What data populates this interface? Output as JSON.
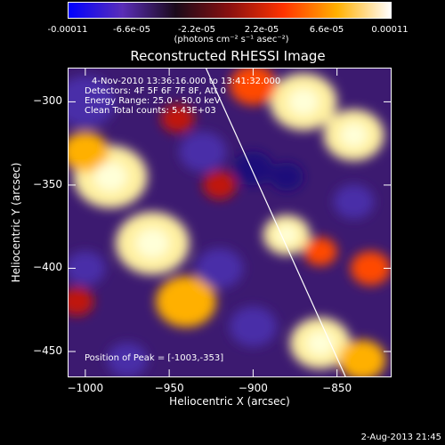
{
  "colorbar": {
    "ticks": [
      "-0.00011",
      "-6.6e-05",
      "-2.2e-05",
      "2.2e-05",
      "6.6e-05",
      "0.00011"
    ],
    "units": "(photons cm⁻² s⁻¹ asec⁻²)",
    "colors": [
      "#0000ff",
      "#5a2eb8",
      "#1a0a1a",
      "#8a1010",
      "#ff3300",
      "#ffb000",
      "#ffffff"
    ]
  },
  "chart_data": {
    "type": "heatmap",
    "title": "Reconstructed RHESSI Image",
    "xlabel": "Heliocentric X (arcsec)",
    "ylabel": "Heliocentric Y (arcsec)",
    "xlim": [
      -1010,
      -818
    ],
    "ylim": [
      -465,
      -280
    ],
    "xticks": [
      -1000,
      -950,
      -900,
      -850
    ],
    "yticks": [
      -300,
      -350,
      -400,
      -450
    ],
    "value_range": [
      -0.00011,
      0.00011
    ],
    "limb_line": {
      "x": [
        -928,
        -845
      ],
      "y": [
        -280,
        -465
      ]
    },
    "peak": {
      "x": -1003,
      "y": -353
    },
    "blobs": [
      {
        "x": -985,
        "y": -345,
        "v": 1.0,
        "s": 22
      },
      {
        "x": -960,
        "y": -385,
        "v": 1.0,
        "s": 22
      },
      {
        "x": -940,
        "y": -420,
        "v": 0.75,
        "s": 18
      },
      {
        "x": -1000,
        "y": -330,
        "v": 0.8,
        "s": 14
      },
      {
        "x": -870,
        "y": -300,
        "v": 1.0,
        "s": 20
      },
      {
        "x": -840,
        "y": -320,
        "v": 0.9,
        "s": 18
      },
      {
        "x": -900,
        "y": -290,
        "v": 0.6,
        "s": 14
      },
      {
        "x": -880,
        "y": -380,
        "v": 0.85,
        "s": 14
      },
      {
        "x": -860,
        "y": -390,
        "v": 0.6,
        "s": 10
      },
      {
        "x": -830,
        "y": -400,
        "v": 0.55,
        "s": 12
      },
      {
        "x": -860,
        "y": -445,
        "v": 0.85,
        "s": 18
      },
      {
        "x": -835,
        "y": -455,
        "v": 0.75,
        "s": 14
      },
      {
        "x": -920,
        "y": -350,
        "v": 0.35,
        "s": 10
      },
      {
        "x": -945,
        "y": -310,
        "v": 0.35,
        "s": 10
      },
      {
        "x": -1005,
        "y": -420,
        "v": 0.3,
        "s": 10
      },
      {
        "x": -1000,
        "y": -300,
        "v": -0.45,
        "s": 18
      },
      {
        "x": -930,
        "y": -330,
        "v": -0.45,
        "s": 14
      },
      {
        "x": -900,
        "y": -340,
        "v": -0.5,
        "s": 12
      },
      {
        "x": -880,
        "y": -345,
        "v": -0.55,
        "s": 10
      },
      {
        "x": -920,
        "y": -400,
        "v": -0.45,
        "s": 14
      },
      {
        "x": -1000,
        "y": -400,
        "v": -0.4,
        "s": 12
      },
      {
        "x": -900,
        "y": -435,
        "v": -0.4,
        "s": 14
      },
      {
        "x": -975,
        "y": -455,
        "v": -0.4,
        "s": 12
      },
      {
        "x": -840,
        "y": -360,
        "v": -0.4,
        "s": 12
      }
    ]
  },
  "annotations": {
    "time": "4-Nov-2010 13:36:16.000 to 13:41:32.000",
    "detectors": "Detectors: 4F 5F 6F 7F 8F, Att 0",
    "energy": "Energy Range: 25.0 - 50.0 keV",
    "method": "Clean     Total counts: 5.43E+03",
    "peak_label": "Position of Peak = [-1003,-353]"
  },
  "footer": "2-Aug-2013 21:45"
}
